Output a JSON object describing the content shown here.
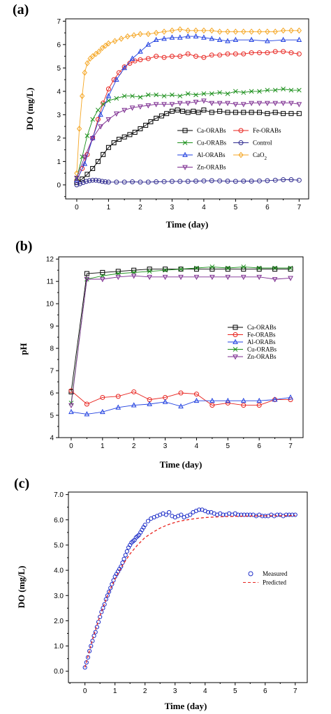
{
  "chart_data": [
    {
      "type": "line",
      "panel_label": "(a)",
      "xlabel": "Time (day)",
      "ylabel": "DO (mg/L)",
      "xlim": [
        -0.35,
        7.3
      ],
      "ylim": [
        -0.6,
        7.1
      ],
      "xticks": [
        "0",
        "1",
        "2",
        "3",
        "4",
        "5",
        "6",
        "7"
      ],
      "yticks": [
        "0",
        "1",
        "2",
        "3",
        "4",
        "5",
        "6",
        "7"
      ],
      "legend_position": "center-right",
      "series": [
        {
          "name": "Ca-ORABs",
          "color": "#000000",
          "marker": "square",
          "x": [
            0,
            0.17,
            0.33,
            0.5,
            0.67,
            0.83,
            1,
            1.17,
            1.33,
            1.5,
            1.67,
            1.83,
            2,
            2.17,
            2.33,
            2.5,
            2.67,
            2.83,
            3,
            3.17,
            3.33,
            3.5,
            3.67,
            3.83,
            4,
            4.25,
            4.5,
            4.75,
            5,
            5.25,
            5.5,
            5.75,
            6,
            6.25,
            6.5,
            6.75,
            7
          ],
          "y": [
            0.1,
            0.25,
            0.45,
            0.7,
            1.0,
            1.3,
            1.6,
            1.8,
            1.95,
            2.05,
            2.15,
            2.25,
            2.4,
            2.55,
            2.7,
            2.85,
            2.95,
            3.05,
            3.15,
            3.2,
            3.15,
            3.1,
            3.15,
            3.1,
            3.2,
            3.1,
            3.15,
            3.1,
            3.1,
            3.1,
            3.1,
            3.1,
            3.05,
            3.1,
            3.05,
            3.05,
            3.05
          ]
        },
        {
          "name": "Fe-ORABs",
          "color": "#e8231e",
          "marker": "circle",
          "x": [
            0,
            0.17,
            0.33,
            0.5,
            0.67,
            0.83,
            1,
            1.17,
            1.33,
            1.5,
            1.67,
            1.83,
            2,
            2.25,
            2.5,
            2.75,
            3,
            3.25,
            3.5,
            3.75,
            4,
            4.25,
            4.5,
            4.75,
            5,
            5.25,
            5.5,
            5.75,
            6,
            6.25,
            6.5,
            6.75,
            7
          ],
          "y": [
            0.2,
            0.7,
            1.3,
            2.0,
            2.8,
            3.5,
            4.1,
            4.5,
            4.8,
            5.05,
            5.2,
            5.3,
            5.35,
            5.4,
            5.5,
            5.45,
            5.5,
            5.5,
            5.6,
            5.5,
            5.45,
            5.55,
            5.55,
            5.6,
            5.6,
            5.6,
            5.65,
            5.65,
            5.65,
            5.7,
            5.7,
            5.65,
            5.6
          ]
        },
        {
          "name": "Cu-ORABs",
          "color": "#1a8f1a",
          "marker": "x",
          "x": [
            0,
            0.17,
            0.33,
            0.5,
            0.67,
            0.83,
            1,
            1.25,
            1.5,
            1.75,
            2,
            2.25,
            2.5,
            2.75,
            3,
            3.25,
            3.5,
            3.75,
            4,
            4.25,
            4.5,
            4.75,
            5,
            5.25,
            5.5,
            5.75,
            6,
            6.25,
            6.5,
            6.75,
            7
          ],
          "y": [
            0.3,
            1.2,
            2.1,
            2.8,
            3.2,
            3.45,
            3.6,
            3.7,
            3.8,
            3.8,
            3.75,
            3.85,
            3.85,
            3.8,
            3.85,
            3.8,
            3.9,
            3.85,
            3.9,
            3.9,
            3.95,
            3.9,
            4.0,
            3.95,
            4.0,
            4.0,
            4.05,
            4.05,
            4.1,
            4.05,
            4.05
          ]
        },
        {
          "name": "Control",
          "color": "#2e2a8f",
          "marker": "circle",
          "x": [
            0,
            0.1,
            0.2,
            0.3,
            0.4,
            0.5,
            0.6,
            0.7,
            0.8,
            0.9,
            1,
            1.25,
            1.5,
            1.75,
            2,
            2.25,
            2.5,
            2.75,
            3,
            3.25,
            3.5,
            3.75,
            4,
            4.25,
            4.5,
            4.75,
            5,
            5.25,
            5.5,
            5.75,
            6,
            6.25,
            6.5,
            6.75,
            7
          ],
          "y": [
            0.0,
            0.05,
            0.1,
            0.15,
            0.18,
            0.2,
            0.2,
            0.18,
            0.15,
            0.13,
            0.12,
            0.12,
            0.12,
            0.13,
            0.12,
            0.12,
            0.13,
            0.14,
            0.15,
            0.15,
            0.15,
            0.16,
            0.17,
            0.18,
            0.17,
            0.16,
            0.15,
            0.16,
            0.16,
            0.17,
            0.18,
            0.2,
            0.22,
            0.22,
            0.2
          ]
        },
        {
          "name": "Al-ORABs",
          "color": "#1f3fe0",
          "marker": "triangle-up",
          "x": [
            0,
            0.25,
            0.5,
            0.75,
            1,
            1.25,
            1.5,
            1.75,
            2,
            2.25,
            2.5,
            2.75,
            3,
            3.25,
            3.5,
            3.75,
            4,
            4.25,
            4.5,
            4.75,
            5,
            5.5,
            6,
            6.5,
            7
          ],
          "y": [
            0.2,
            0.9,
            2.0,
            3.0,
            3.8,
            4.5,
            5.0,
            5.4,
            5.7,
            6.0,
            6.2,
            6.25,
            6.3,
            6.3,
            6.35,
            6.35,
            6.3,
            6.25,
            6.2,
            6.15,
            6.2,
            6.2,
            6.15,
            6.2,
            6.2
          ]
        },
        {
          "name": "CaO2",
          "color": "#f5a623",
          "marker": "diamond",
          "x": [
            0,
            0.08,
            0.17,
            0.25,
            0.33,
            0.42,
            0.5,
            0.6,
            0.7,
            0.8,
            0.9,
            1,
            1.2,
            1.4,
            1.6,
            1.8,
            2,
            2.25,
            2.5,
            2.75,
            3,
            3.25,
            3.5,
            3.75,
            4,
            4.25,
            4.5,
            4.75,
            5,
            5.25,
            5.5,
            5.75,
            6,
            6.25,
            6.5,
            6.75,
            7
          ],
          "y": [
            0.5,
            2.4,
            3.8,
            4.8,
            5.2,
            5.4,
            5.5,
            5.6,
            5.7,
            5.85,
            5.95,
            6.05,
            6.15,
            6.25,
            6.35,
            6.4,
            6.45,
            6.45,
            6.5,
            6.55,
            6.6,
            6.65,
            6.6,
            6.6,
            6.6,
            6.6,
            6.55,
            6.55,
            6.55,
            6.55,
            6.55,
            6.55,
            6.55,
            6.55,
            6.6,
            6.6,
            6.6
          ]
        },
        {
          "name": "Zn-ORABs",
          "color": "#7b2a8f",
          "marker": "triangle-down",
          "x": [
            0,
            0.25,
            0.5,
            0.75,
            1,
            1.25,
            1.5,
            1.75,
            2,
            2.25,
            2.5,
            2.75,
            3,
            3.25,
            3.5,
            3.75,
            4,
            4.25,
            4.5,
            4.75,
            5,
            5.25,
            5.5,
            5.75,
            6,
            6.25,
            6.5,
            6.75,
            7
          ],
          "y": [
            0.3,
            1.2,
            2.0,
            2.5,
            2.8,
            3.05,
            3.2,
            3.3,
            3.35,
            3.4,
            3.45,
            3.45,
            3.45,
            3.5,
            3.5,
            3.55,
            3.6,
            3.5,
            3.5,
            3.5,
            3.45,
            3.45,
            3.5,
            3.5,
            3.5,
            3.5,
            3.5,
            3.5,
            3.45
          ]
        }
      ],
      "legend_entries": [
        "Ca-ORABs",
        "Fe-ORABs",
        "Cu-ORABs",
        "Control",
        "Al-ORABs",
        "CaO2",
        "Zn-ORABs"
      ]
    },
    {
      "type": "line",
      "panel_label": "(b)",
      "xlabel": "Time (day)",
      "ylabel": "pH",
      "xlim": [
        -0.4,
        7.4
      ],
      "ylim": [
        4.0,
        12.1
      ],
      "xticks": [
        "0",
        "1",
        "2",
        "3",
        "4",
        "5",
        "6",
        "7"
      ],
      "yticks": [
        "4",
        "5",
        "6",
        "7",
        "8",
        "9",
        "10",
        "11",
        "12"
      ],
      "legend_position": "center-right",
      "series": [
        {
          "name": "Ca-ORABs",
          "color": "#000000",
          "marker": "square",
          "x": [
            0,
            0.5,
            1,
            1.5,
            2,
            2.5,
            3,
            3.5,
            4,
            4.5,
            5,
            5.5,
            6,
            6.5,
            7
          ],
          "y": [
            6.05,
            11.35,
            11.4,
            11.45,
            11.5,
            11.55,
            11.55,
            11.55,
            11.55,
            11.55,
            11.55,
            11.55,
            11.55,
            11.55,
            11.55
          ]
        },
        {
          "name": "Fe-ORABs",
          "color": "#e8231e",
          "marker": "circle",
          "x": [
            0,
            0.5,
            1,
            1.5,
            2,
            2.5,
            3,
            3.5,
            4,
            4.5,
            5,
            5.5,
            6,
            6.5,
            7
          ],
          "y": [
            6.1,
            5.5,
            5.8,
            5.85,
            6.05,
            5.7,
            5.8,
            6.0,
            5.95,
            5.45,
            5.55,
            5.45,
            5.45,
            5.7,
            5.7
          ]
        },
        {
          "name": "Al-ORABs",
          "color": "#1f3fe0",
          "marker": "triangle-up",
          "x": [
            0,
            0.5,
            1,
            1.5,
            2,
            2.5,
            3,
            3.5,
            4,
            4.5,
            5,
            5.5,
            6,
            6.5,
            7
          ],
          "y": [
            5.15,
            5.05,
            5.15,
            5.35,
            5.45,
            5.5,
            5.6,
            5.4,
            5.65,
            5.65,
            5.65,
            5.65,
            5.65,
            5.7,
            5.8
          ]
        },
        {
          "name": "Cu-ORABs",
          "color": "#1a8f1a",
          "marker": "x",
          "x": [
            0,
            0.5,
            1,
            1.5,
            2,
            2.5,
            3,
            3.5,
            4,
            4.5,
            5,
            5.5,
            6,
            6.5,
            7
          ],
          "y": [
            5.55,
            11.1,
            11.25,
            11.35,
            11.4,
            11.45,
            11.5,
            11.55,
            11.6,
            11.65,
            11.6,
            11.65,
            11.6,
            11.6,
            11.6
          ]
        },
        {
          "name": "Zn-ORABs",
          "color": "#7b2a8f",
          "marker": "triangle-down",
          "x": [
            0,
            0.5,
            1,
            1.5,
            2,
            2.5,
            3,
            3.5,
            4,
            4.5,
            5,
            5.5,
            6,
            6.5,
            7
          ],
          "y": [
            5.45,
            11.1,
            11.1,
            11.2,
            11.25,
            11.2,
            11.2,
            11.2,
            11.2,
            11.2,
            11.2,
            11.2,
            11.2,
            11.1,
            11.15
          ]
        }
      ],
      "legend_entries": [
        "Ca-ORABs",
        "Fe-ORABs",
        "Al-ORABs",
        "Cu-ORABs",
        "Zn-ORABs"
      ]
    },
    {
      "type": "scatter",
      "panel_label": "(c)",
      "xlabel": "Time (day)",
      "ylabel": "DO (mg/L)",
      "xlim": [
        -0.55,
        7.4
      ],
      "ylim": [
        -0.45,
        7.1
      ],
      "xticks": [
        "0",
        "1",
        "2",
        "3",
        "4",
        "5",
        "6",
        "7"
      ],
      "yticks": [
        "0.0",
        "1.0",
        "2.0",
        "3.0",
        "4.0",
        "5.0",
        "6.0",
        "7.0"
      ],
      "legend_position": "center-right",
      "series": [
        {
          "name": "Measured",
          "color": "#1f2fc8",
          "marker": "circle",
          "x": [
            0,
            0.05,
            0.1,
            0.15,
            0.2,
            0.25,
            0.3,
            0.35,
            0.4,
            0.45,
            0.5,
            0.55,
            0.6,
            0.65,
            0.7,
            0.75,
            0.8,
            0.85,
            0.9,
            0.95,
            1,
            1.05,
            1.1,
            1.15,
            1.2,
            1.25,
            1.3,
            1.35,
            1.4,
            1.45,
            1.5,
            1.55,
            1.6,
            1.65,
            1.7,
            1.75,
            1.8,
            1.85,
            1.9,
            1.95,
            2,
            2.1,
            2.2,
            2.3,
            2.4,
            2.5,
            2.6,
            2.7,
            2.8,
            2.9,
            3,
            3.1,
            3.2,
            3.3,
            3.4,
            3.5,
            3.6,
            3.7,
            3.8,
            3.9,
            4,
            4.1,
            4.2,
            4.3,
            4.4,
            4.5,
            4.6,
            4.7,
            4.8,
            4.9,
            5,
            5.1,
            5.2,
            5.3,
            5.4,
            5.5,
            5.6,
            5.7,
            5.8,
            5.9,
            6,
            6.1,
            6.2,
            6.3,
            6.4,
            6.5,
            6.6,
            6.7,
            6.8,
            6.9,
            7
          ],
          "y": [
            0.15,
            0.35,
            0.55,
            0.8,
            1.0,
            1.2,
            1.4,
            1.55,
            1.75,
            1.95,
            2.15,
            2.35,
            2.5,
            2.65,
            2.85,
            3.0,
            3.15,
            3.3,
            3.45,
            3.6,
            3.75,
            3.85,
            3.95,
            4.05,
            4.15,
            4.3,
            4.45,
            4.6,
            4.75,
            4.9,
            5.0,
            5.1,
            5.15,
            5.2,
            5.3,
            5.35,
            5.4,
            5.5,
            5.6,
            5.7,
            5.8,
            5.95,
            6.05,
            6.1,
            6.15,
            6.2,
            6.25,
            6.2,
            6.3,
            6.15,
            6.1,
            6.15,
            6.2,
            6.1,
            6.15,
            6.2,
            6.3,
            6.35,
            6.4,
            6.4,
            6.35,
            6.3,
            6.3,
            6.25,
            6.2,
            6.25,
            6.2,
            6.2,
            6.25,
            6.2,
            6.25,
            6.2,
            6.2,
            6.2,
            6.2,
            6.2,
            6.2,
            6.15,
            6.2,
            6.15,
            6.15,
            6.15,
            6.2,
            6.15,
            6.2,
            6.2,
            6.15,
            6.2,
            6.2,
            6.2,
            6.2
          ]
        },
        {
          "name": "Predicted",
          "color": "#e8231e",
          "style": "dashed",
          "x": [
            0,
            0.25,
            0.5,
            0.75,
            1,
            1.25,
            1.5,
            1.75,
            2,
            2.25,
            2.5,
            2.75,
            3,
            3.25,
            3.5,
            3.75,
            4,
            4.5,
            5,
            5.5,
            6,
            6.5,
            7
          ],
          "y": [
            0.15,
            1.25,
            2.2,
            3.0,
            3.65,
            4.2,
            4.65,
            5.0,
            5.3,
            5.5,
            5.67,
            5.8,
            5.9,
            5.97,
            6.02,
            6.06,
            6.09,
            6.12,
            6.14,
            6.15,
            6.16,
            6.16,
            6.17
          ]
        }
      ],
      "legend_entries": [
        "Measured",
        "Predicted"
      ]
    }
  ]
}
